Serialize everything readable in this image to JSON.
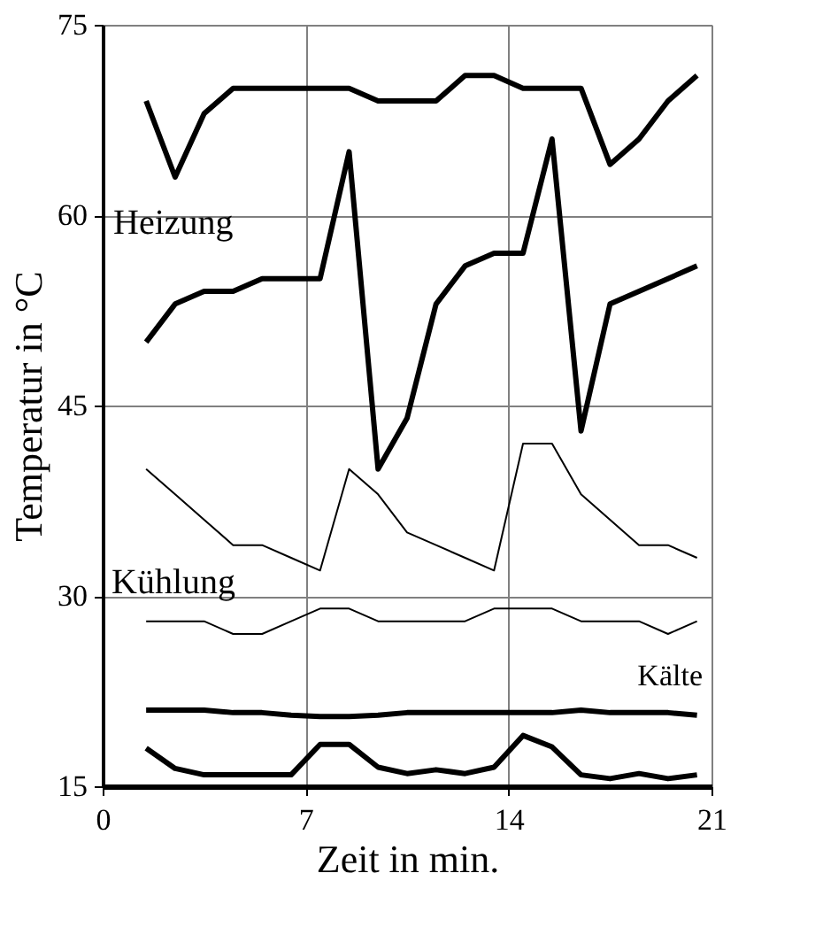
{
  "chart_data": {
    "type": "line",
    "xlabel": "Zeit in min.",
    "ylabel": "Temperatur in °C",
    "x": [
      1.5,
      2.5,
      3.5,
      4.5,
      5.5,
      6.5,
      7.5,
      8.5,
      9.5,
      10.5,
      11.5,
      12.5,
      13.5,
      14.5,
      15.5,
      16.5,
      17.5,
      18.5,
      19.5,
      20.5
    ],
    "series": [
      {
        "color": "#000000",
        "values": [
          69,
          63,
          68,
          70,
          70,
          70,
          70,
          70,
          69,
          69,
          69,
          71,
          71,
          70,
          70,
          70,
          64,
          66,
          69,
          71
        ]
      },
      {
        "color": "#000000",
        "values": [
          50,
          53,
          54,
          54,
          55,
          55,
          55,
          65,
          40,
          44,
          53,
          56,
          57,
          57,
          66,
          43,
          53,
          54,
          55,
          56
        ]
      },
      {
        "color": "#000000",
        "values": [
          40,
          38,
          36,
          34,
          34,
          33,
          32,
          40,
          38,
          35,
          34,
          33,
          32,
          42,
          42,
          38,
          36,
          34,
          34,
          33
        ]
      },
      {
        "color": "#000000",
        "values": [
          28,
          28,
          28,
          27,
          27,
          28,
          29,
          29,
          28,
          28,
          28,
          28,
          29,
          29,
          29,
          28,
          28,
          28,
          27,
          28
        ]
      },
      {
        "color": "#000000",
        "values": [
          21,
          21,
          21,
          20.8,
          20.8,
          20.6,
          20.5,
          20.5,
          20.6,
          20.8,
          20.8,
          20.8,
          20.8,
          20.8,
          20.8,
          21,
          20.8,
          20.8,
          20.8,
          20.6
        ]
      },
      {
        "color": "#000000",
        "values": [
          18,
          16.4,
          15.9,
          15.9,
          15.9,
          15.9,
          18.3,
          18.3,
          16.5,
          16,
          16.3,
          16,
          16.5,
          19,
          18.1,
          15.9,
          15.6,
          16,
          15.6,
          15.9
        ]
      }
    ],
    "xlim": [
      0,
      21
    ],
    "xticks": [
      0,
      7,
      14,
      21
    ],
    "ylim": [
      15,
      75
    ],
    "yticks": [
      15,
      30,
      45,
      60,
      75
    ],
    "grid": true,
    "marker": "none",
    "line_style": "solid",
    "annotations": [
      "Heizung",
      "Kühlung",
      "Kälte"
    ]
  }
}
